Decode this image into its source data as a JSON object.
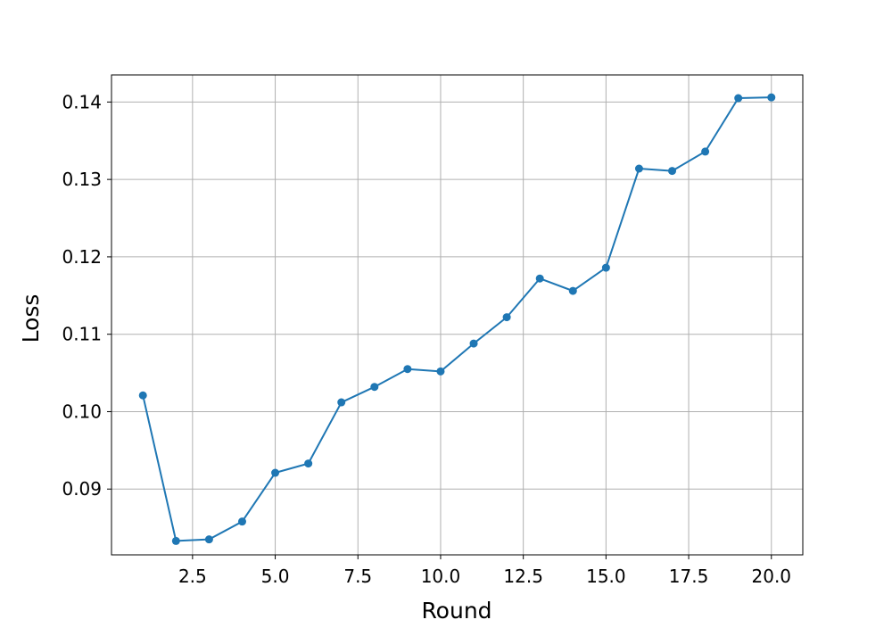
{
  "chart_data": {
    "type": "line",
    "title": "",
    "xlabel": "Round",
    "ylabel": "Loss",
    "xlim": [
      0.05,
      20.95
    ],
    "ylim": [
      0.0815,
      0.1435
    ],
    "xticks": [
      2.5,
      5.0,
      7.5,
      10.0,
      12.5,
      15.0,
      17.5,
      20.0
    ],
    "xtick_labels": [
      "2.5",
      "5.0",
      "7.5",
      "10.0",
      "12.5",
      "15.0",
      "17.5",
      "20.0"
    ],
    "yticks": [
      0.09,
      0.1,
      0.11,
      0.12,
      0.13,
      0.14
    ],
    "ytick_labels": [
      "0.09",
      "0.10",
      "0.11",
      "0.12",
      "0.13",
      "0.14"
    ],
    "grid": true,
    "legend": "none",
    "series": [
      {
        "color": "#1f77b4",
        "marker": "circle",
        "x": [
          1,
          2,
          3,
          4,
          5,
          6,
          7,
          8,
          9,
          10,
          11,
          12,
          13,
          14,
          15,
          16,
          17,
          18,
          19,
          20
        ],
        "y": [
          0.1021,
          0.0833,
          0.0835,
          0.0858,
          0.0921,
          0.0933,
          0.1012,
          0.1032,
          0.1055,
          0.1052,
          0.1088,
          0.1122,
          0.1172,
          0.1156,
          0.1186,
          0.1314,
          0.1311,
          0.1336,
          0.1405,
          0.1406
        ]
      }
    ]
  }
}
